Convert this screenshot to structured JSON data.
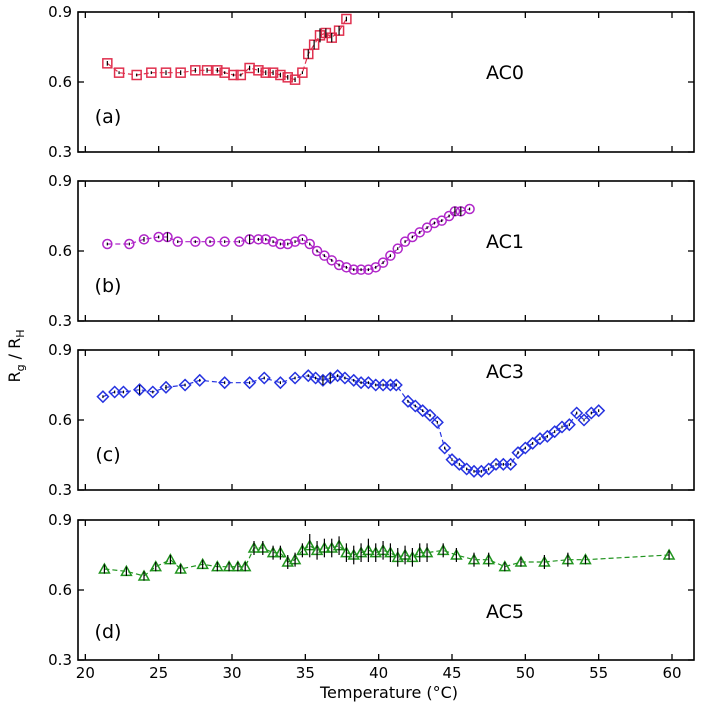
{
  "figure": {
    "ylabel_main": "R",
    "ylabel_sub1": "g",
    "ylabel_sep": " / R",
    "ylabel_sub2": "H",
    "xlabel": "Temperature (°C)",
    "x_ticks": [
      20,
      25,
      30,
      35,
      40,
      45,
      50,
      55,
      60
    ],
    "xlim": [
      19.5,
      61.5
    ]
  },
  "chart_data": [
    {
      "type": "scatter",
      "panel_label": "(a)",
      "sample_label": "AC0",
      "color": "#e0304e",
      "marker": "square",
      "ylim": [
        0.3,
        0.9
      ],
      "y_ticks": [
        0.3,
        0.6,
        0.9
      ],
      "points": [
        [
          21.5,
          0.68,
          0.01
        ],
        [
          22.3,
          0.64,
          0
        ],
        [
          23.5,
          0.63,
          0
        ],
        [
          24.5,
          0.64,
          0
        ],
        [
          25.5,
          0.64,
          0.01
        ],
        [
          26.5,
          0.64,
          0.01
        ],
        [
          27.5,
          0.65,
          0.01
        ],
        [
          28.3,
          0.65,
          0.01
        ],
        [
          29,
          0.65,
          0.01
        ],
        [
          29.5,
          0.64,
          0
        ],
        [
          30.1,
          0.63,
          0
        ],
        [
          30.6,
          0.63,
          0
        ],
        [
          31.2,
          0.66,
          0.01
        ],
        [
          31.8,
          0.65,
          0.01
        ],
        [
          32.3,
          0.64,
          0.01
        ],
        [
          32.8,
          0.64,
          0.01
        ],
        [
          33.3,
          0.63,
          0.01
        ],
        [
          33.8,
          0.62,
          0.01
        ],
        [
          34.3,
          0.61,
          0.01
        ],
        [
          34.8,
          0.64,
          0
        ],
        [
          35.2,
          0.72,
          0.02
        ],
        [
          35.6,
          0.76,
          0.02
        ],
        [
          36,
          0.8,
          0.03
        ],
        [
          36.4,
          0.81,
          0.02
        ],
        [
          36.8,
          0.79,
          0.02
        ],
        [
          37.3,
          0.82,
          0.02
        ],
        [
          37.8,
          0.87,
          0.01
        ]
      ]
    },
    {
      "type": "scatter",
      "panel_label": "(b)",
      "sample_label": "AC1",
      "color": "#b026c9",
      "marker": "circle",
      "ylim": [
        0.3,
        0.9
      ],
      "y_ticks": [
        0.3,
        0.6,
        0.9
      ],
      "points": [
        [
          21.5,
          0.63,
          0
        ],
        [
          23,
          0.63,
          0
        ],
        [
          24,
          0.65,
          0.01
        ],
        [
          25,
          0.66,
          0
        ],
        [
          25.6,
          0.66,
          0.02
        ],
        [
          26.3,
          0.64,
          0
        ],
        [
          27.5,
          0.64,
          0
        ],
        [
          28.5,
          0.64,
          0
        ],
        [
          29.5,
          0.64,
          0
        ],
        [
          30.5,
          0.64,
          0
        ],
        [
          31.2,
          0.65,
          0.02
        ],
        [
          31.8,
          0.65,
          0
        ],
        [
          32.3,
          0.65,
          0
        ],
        [
          32.8,
          0.64,
          0
        ],
        [
          33.3,
          0.63,
          0
        ],
        [
          33.8,
          0.63,
          0
        ],
        [
          34.3,
          0.64,
          0
        ],
        [
          34.8,
          0.65,
          0
        ],
        [
          35.3,
          0.63,
          0
        ],
        [
          35.8,
          0.6,
          0
        ],
        [
          36.3,
          0.58,
          0
        ],
        [
          36.8,
          0.56,
          0
        ],
        [
          37.3,
          0.54,
          0
        ],
        [
          37.8,
          0.53,
          0
        ],
        [
          38.3,
          0.52,
          0
        ],
        [
          38.8,
          0.52,
          0
        ],
        [
          39.3,
          0.52,
          0
        ],
        [
          39.8,
          0.53,
          0
        ],
        [
          40.3,
          0.55,
          0
        ],
        [
          40.8,
          0.58,
          0
        ],
        [
          41.3,
          0.61,
          0
        ],
        [
          41.8,
          0.64,
          0
        ],
        [
          42.3,
          0.66,
          0
        ],
        [
          42.8,
          0.68,
          0
        ],
        [
          43.3,
          0.7,
          0
        ],
        [
          43.8,
          0.72,
          0
        ],
        [
          44.3,
          0.73,
          0
        ],
        [
          44.8,
          0.75,
          0
        ],
        [
          45.2,
          0.77,
          0.02
        ],
        [
          45.6,
          0.77,
          0.02
        ],
        [
          46.2,
          0.78,
          0
        ]
      ]
    },
    {
      "type": "scatter",
      "panel_label": "(c)",
      "sample_label": "AC3",
      "color": "#2633e0",
      "marker": "diamond",
      "ylim": [
        0.3,
        0.9
      ],
      "y_ticks": [
        0.3,
        0.6,
        0.9
      ],
      "points": [
        [
          21.2,
          0.7,
          0
        ],
        [
          22,
          0.72,
          0
        ],
        [
          22.6,
          0.72,
          0
        ],
        [
          23.7,
          0.73,
          0.02
        ],
        [
          24.6,
          0.72,
          0
        ],
        [
          25.5,
          0.74,
          0.01
        ],
        [
          26.8,
          0.75,
          0
        ],
        [
          27.8,
          0.77,
          0
        ],
        [
          29.5,
          0.76,
          0
        ],
        [
          31.2,
          0.76,
          0
        ],
        [
          32.2,
          0.78,
          0
        ],
        [
          33.3,
          0.76,
          0
        ],
        [
          34.3,
          0.78,
          0
        ],
        [
          35.2,
          0.79,
          0
        ],
        [
          35.7,
          0.78,
          0
        ],
        [
          36.2,
          0.77,
          0.02
        ],
        [
          36.7,
          0.78,
          0.02
        ],
        [
          37.2,
          0.79,
          0
        ],
        [
          37.7,
          0.78,
          0
        ],
        [
          38.3,
          0.77,
          0
        ],
        [
          38.8,
          0.76,
          0
        ],
        [
          39.3,
          0.76,
          0
        ],
        [
          39.8,
          0.75,
          0
        ],
        [
          40.3,
          0.75,
          0
        ],
        [
          40.8,
          0.75,
          0
        ],
        [
          41.2,
          0.75,
          0
        ],
        [
          42,
          0.68,
          0
        ],
        [
          42.5,
          0.66,
          0
        ],
        [
          43,
          0.64,
          0
        ],
        [
          43.5,
          0.62,
          0
        ],
        [
          44,
          0.59,
          0
        ],
        [
          44.5,
          0.48,
          0
        ],
        [
          45,
          0.43,
          0
        ],
        [
          45.5,
          0.41,
          0
        ],
        [
          46,
          0.39,
          0
        ],
        [
          46.5,
          0.38,
          0
        ],
        [
          47,
          0.38,
          0
        ],
        [
          47.5,
          0.39,
          0
        ],
        [
          48,
          0.41,
          0
        ],
        [
          48.5,
          0.41,
          0
        ],
        [
          49,
          0.41,
          0
        ],
        [
          49.5,
          0.46,
          0
        ],
        [
          50,
          0.48,
          0
        ],
        [
          50.5,
          0.5,
          0
        ],
        [
          51,
          0.52,
          0
        ],
        [
          51.5,
          0.53,
          0
        ],
        [
          52,
          0.55,
          0
        ],
        [
          52.5,
          0.57,
          0
        ],
        [
          53,
          0.58,
          0
        ],
        [
          53.5,
          0.63,
          0
        ],
        [
          54,
          0.6,
          0
        ],
        [
          54.5,
          0.63,
          0
        ],
        [
          55,
          0.64,
          0
        ]
      ]
    },
    {
      "type": "scatter",
      "panel_label": "(d)",
      "sample_label": "AC5",
      "color": "#21941f",
      "marker": "triangle",
      "ylim": [
        0.3,
        0.9
      ],
      "y_ticks": [
        0.3,
        0.6,
        0.9
      ],
      "points": [
        [
          21.3,
          0.69,
          0.02
        ],
        [
          22.8,
          0.68,
          0.02
        ],
        [
          24,
          0.66,
          0.02
        ],
        [
          24.8,
          0.7,
          0.02
        ],
        [
          25.8,
          0.73,
          0.02
        ],
        [
          26.5,
          0.69,
          0.02
        ],
        [
          28,
          0.71,
          0.02
        ],
        [
          29,
          0.7,
          0.02
        ],
        [
          29.8,
          0.7,
          0.02
        ],
        [
          30.4,
          0.7,
          0.02
        ],
        [
          30.9,
          0.7,
          0.02
        ],
        [
          31.5,
          0.78,
          0.03
        ],
        [
          32.1,
          0.78,
          0.03
        ],
        [
          32.8,
          0.76,
          0.03
        ],
        [
          33.3,
          0.76,
          0.03
        ],
        [
          33.8,
          0.72,
          0.03
        ],
        [
          34.3,
          0.73,
          0.03
        ],
        [
          34.8,
          0.77,
          0.03
        ],
        [
          35.3,
          0.79,
          0.05
        ],
        [
          35.8,
          0.77,
          0.04
        ],
        [
          36.3,
          0.78,
          0.04
        ],
        [
          36.8,
          0.78,
          0.04
        ],
        [
          37.3,
          0.79,
          0.04
        ],
        [
          37.8,
          0.76,
          0.04
        ],
        [
          38.3,
          0.75,
          0.04
        ],
        [
          38.8,
          0.76,
          0.04
        ],
        [
          39.3,
          0.77,
          0.05
        ],
        [
          39.8,
          0.76,
          0.04
        ],
        [
          40.3,
          0.77,
          0.04
        ],
        [
          40.8,
          0.76,
          0.04
        ],
        [
          41.3,
          0.74,
          0.04
        ],
        [
          41.8,
          0.75,
          0.04
        ],
        [
          42.3,
          0.74,
          0.04
        ],
        [
          42.8,
          0.76,
          0.04
        ],
        [
          43.3,
          0.76,
          0.04
        ],
        [
          44.4,
          0.77,
          0.03
        ],
        [
          45.3,
          0.75,
          0.03
        ],
        [
          46.5,
          0.73,
          0.03
        ],
        [
          47.5,
          0.73,
          0.03
        ],
        [
          48.6,
          0.7,
          0.02
        ],
        [
          49.7,
          0.72,
          0.02
        ],
        [
          51.3,
          0.72,
          0.03
        ],
        [
          52.9,
          0.73,
          0.03
        ],
        [
          54.1,
          0.73,
          0.02
        ],
        [
          59.8,
          0.75,
          0.02
        ]
      ]
    }
  ]
}
